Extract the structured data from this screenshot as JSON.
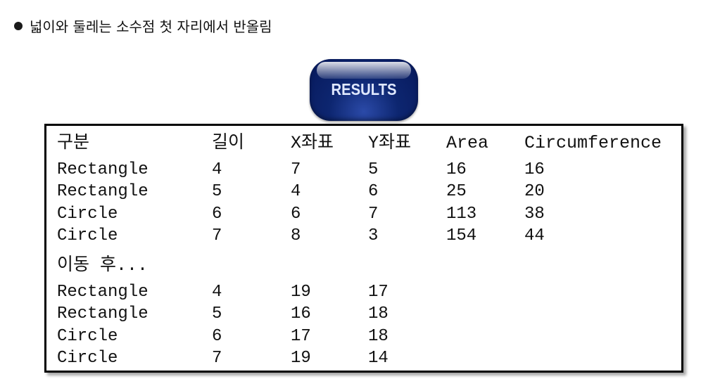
{
  "note": {
    "text": "넓이와 둘레는 소수점 첫 자리에서 반올림"
  },
  "badge": {
    "label": "RESULTS"
  },
  "table": {
    "headers": [
      "구분",
      "길이",
      "X좌표",
      "Y좌표",
      "Area",
      "Circumference"
    ],
    "before_rows": [
      [
        "Rectangle",
        "4",
        "7",
        "5",
        "16",
        "16"
      ],
      [
        "Rectangle",
        "5",
        "4",
        "6",
        "25",
        "20"
      ],
      [
        "Circle",
        "6",
        "6",
        "7",
        "113",
        "38"
      ],
      [
        "Circle",
        "7",
        "8",
        "3",
        "154",
        "44"
      ]
    ],
    "after_label": "이동 후...",
    "after_rows": [
      [
        "Rectangle",
        "4",
        "19",
        "17"
      ],
      [
        "Rectangle",
        "5",
        "16",
        "18"
      ],
      [
        "Circle",
        "6",
        "17",
        "18"
      ],
      [
        "Circle",
        "7",
        "19",
        "14"
      ]
    ]
  }
}
